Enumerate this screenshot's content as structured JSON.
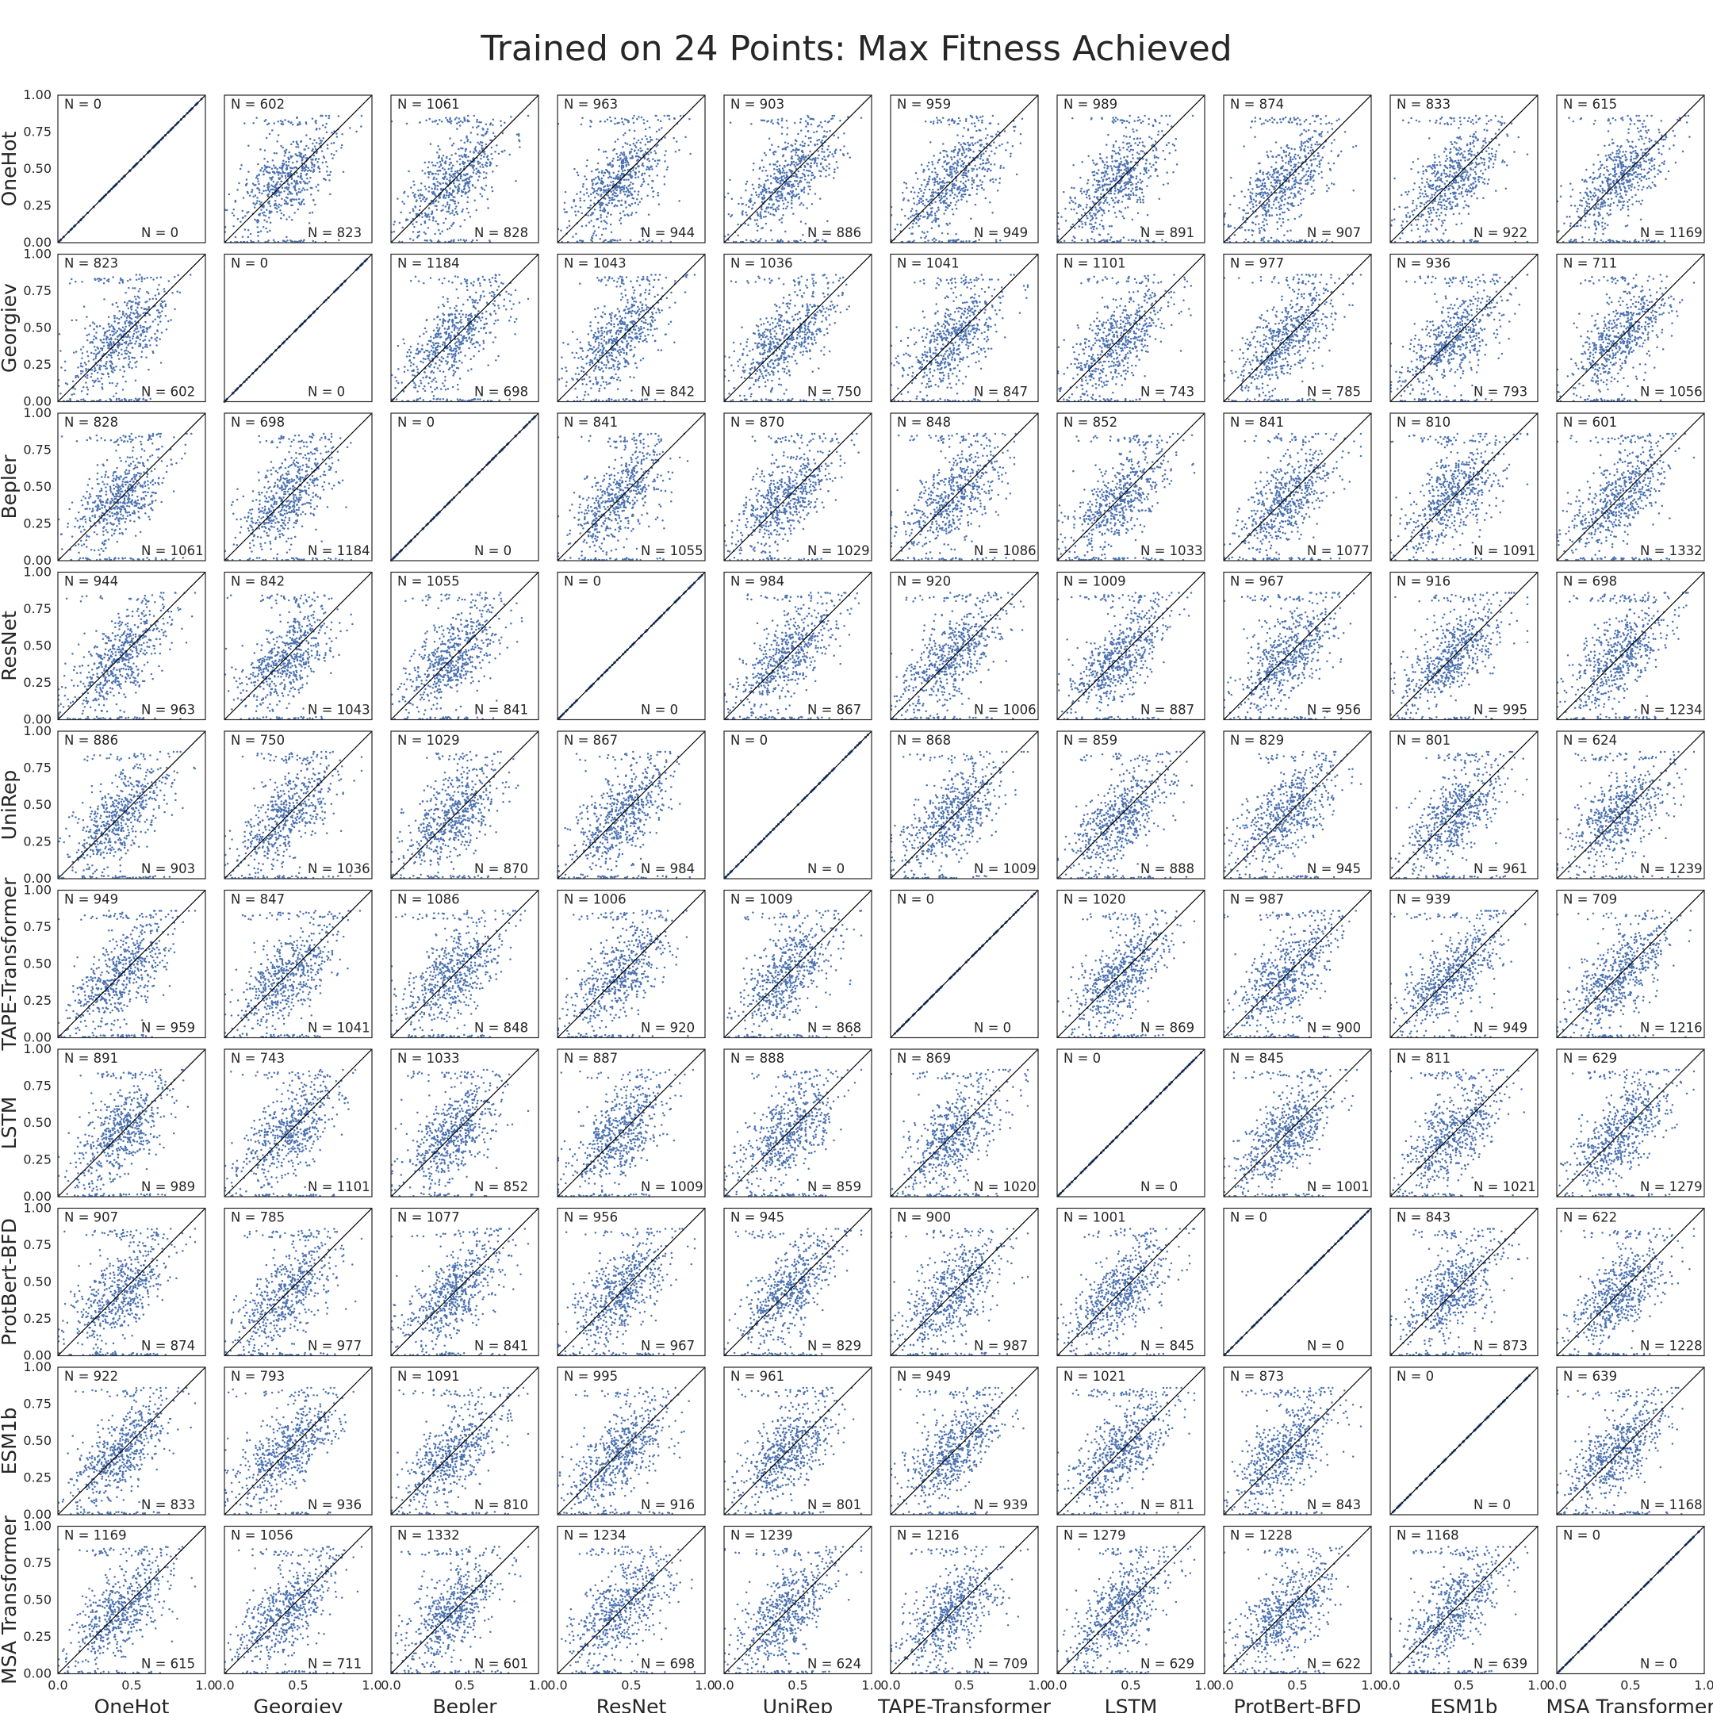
{
  "chart_data": {
    "type": "scatter",
    "title": "Trained on 24 Points: Max Fitness Achieved",
    "models": [
      "OneHot",
      "Georgiev",
      "Bepler",
      "ResNet",
      "UniRep",
      "TAPE-Transformer",
      "LSTM",
      "ProtBert-BFD",
      "ESM1b",
      "MSA Transformer"
    ],
    "xlim": [
      0,
      1
    ],
    "ylim": [
      0,
      1
    ],
    "x_ticks": [
      "0.0",
      "0.5",
      "1.0"
    ],
    "y_ticks": [
      "0.00",
      "0.25",
      "0.50",
      "0.75",
      "1.00"
    ],
    "grid": false,
    "point_color": "#4c72b0",
    "diagonal_color": "#000000",
    "n_label_prefix": "N = ",
    "n_matrix": [
      [
        0,
        602,
        1061,
        963,
        903,
        959,
        989,
        874,
        833,
        615
      ],
      [
        823,
        0,
        1184,
        1043,
        1036,
        1041,
        1101,
        977,
        936,
        711
      ],
      [
        828,
        698,
        0,
        841,
        870,
        848,
        852,
        841,
        810,
        601
      ],
      [
        944,
        842,
        1055,
        0,
        984,
        920,
        1009,
        967,
        916,
        698
      ],
      [
        886,
        750,
        1029,
        867,
        0,
        868,
        859,
        829,
        801,
        624
      ],
      [
        949,
        847,
        1086,
        1006,
        1009,
        0,
        1020,
        987,
        939,
        709
      ],
      [
        891,
        743,
        1033,
        887,
        888,
        869,
        0,
        845,
        811,
        629
      ],
      [
        907,
        785,
        1077,
        956,
        945,
        900,
        1001,
        0,
        843,
        622
      ],
      [
        922,
        793,
        1091,
        995,
        961,
        949,
        1021,
        873,
        0,
        639
      ],
      [
        1169,
        1056,
        1332,
        1234,
        1239,
        1216,
        1279,
        1228,
        1168,
        0
      ]
    ]
  }
}
